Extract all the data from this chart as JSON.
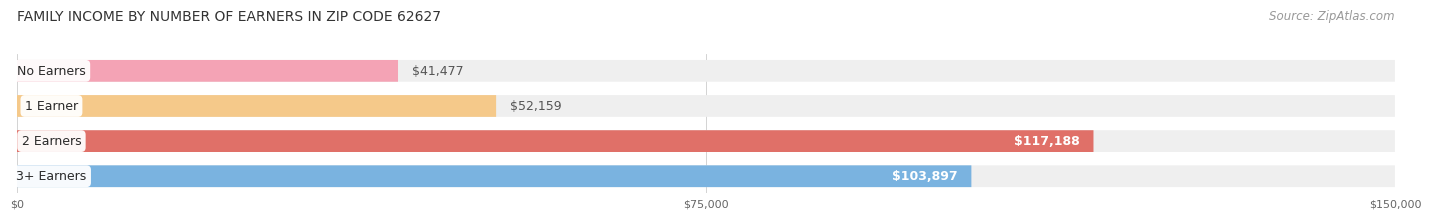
{
  "title": "FAMILY INCOME BY NUMBER OF EARNERS IN ZIP CODE 62627",
  "source": "Source: ZipAtlas.com",
  "categories": [
    "No Earners",
    "1 Earner",
    "2 Earners",
    "3+ Earners"
  ],
  "values": [
    41477,
    52159,
    117188,
    103897
  ],
  "bar_colors": [
    "#f4a3b5",
    "#f5c98a",
    "#e07068",
    "#7ab3e0"
  ],
  "value_labels": [
    "$41,477",
    "$52,159",
    "$117,188",
    "$103,897"
  ],
  "value_inside": [
    false,
    false,
    true,
    true
  ],
  "xlim": [
    0,
    150000
  ],
  "xticks": [
    0,
    75000,
    150000
  ],
  "xticklabels": [
    "$0",
    "$75,000",
    "$150,000"
  ],
  "background_color": "#ffffff",
  "bar_track_color": "#efefef",
  "title_fontsize": 10,
  "source_fontsize": 8.5,
  "label_fontsize": 9,
  "value_fontsize": 9
}
